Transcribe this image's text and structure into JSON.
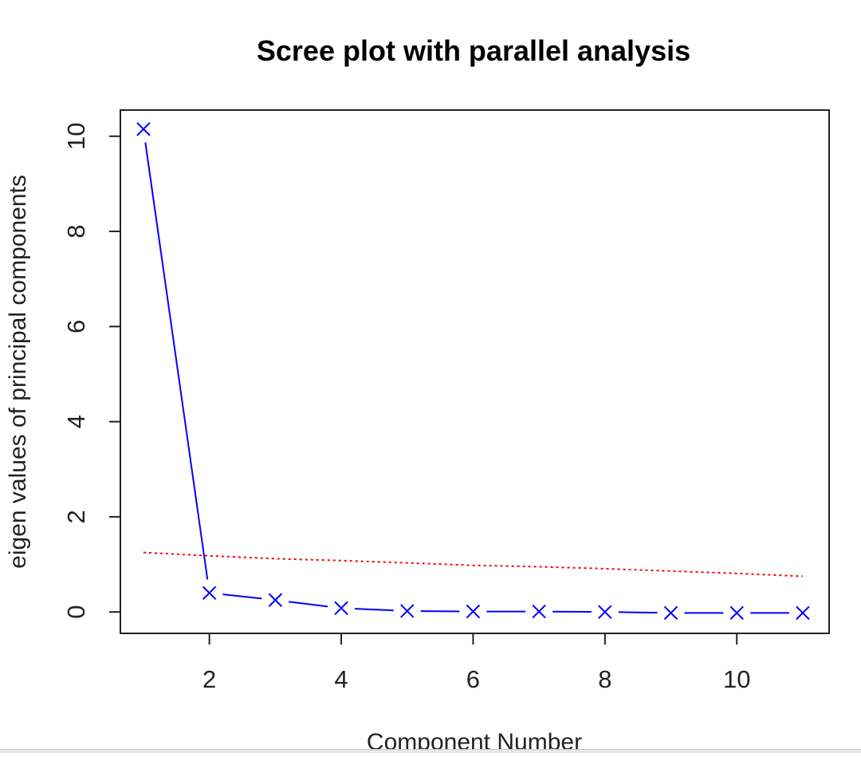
{
  "chart_data": {
    "type": "line",
    "title": "Scree plot with parallel analysis",
    "xlabel": "Component Number",
    "ylabel": "eigen values of principal components",
    "x": [
      1,
      2,
      3,
      4,
      5,
      6,
      7,
      8,
      9,
      10,
      11
    ],
    "xlim": [
      0.65,
      11.4
    ],
    "ylim": [
      -0.45,
      10.55
    ],
    "x_ticks": [
      2,
      4,
      6,
      8,
      10
    ],
    "y_ticks": [
      0,
      2,
      4,
      6,
      8,
      10
    ],
    "grid": false,
    "series": [
      {
        "values": [
          10.15,
          0.4,
          0.25,
          0.08,
          0.02,
          0.01,
          0.01,
          0.0,
          -0.02,
          -0.02,
          -0.02
        ],
        "color": "#0000ff",
        "line_style": "solid",
        "marker": "x"
      },
      {
        "values": [
          1.25,
          1.18,
          1.12,
          1.08,
          1.03,
          0.98,
          0.95,
          0.91,
          0.86,
          0.81,
          0.75
        ],
        "color": "#ff0000",
        "line_style": "dotted",
        "marker": "none"
      }
    ]
  }
}
